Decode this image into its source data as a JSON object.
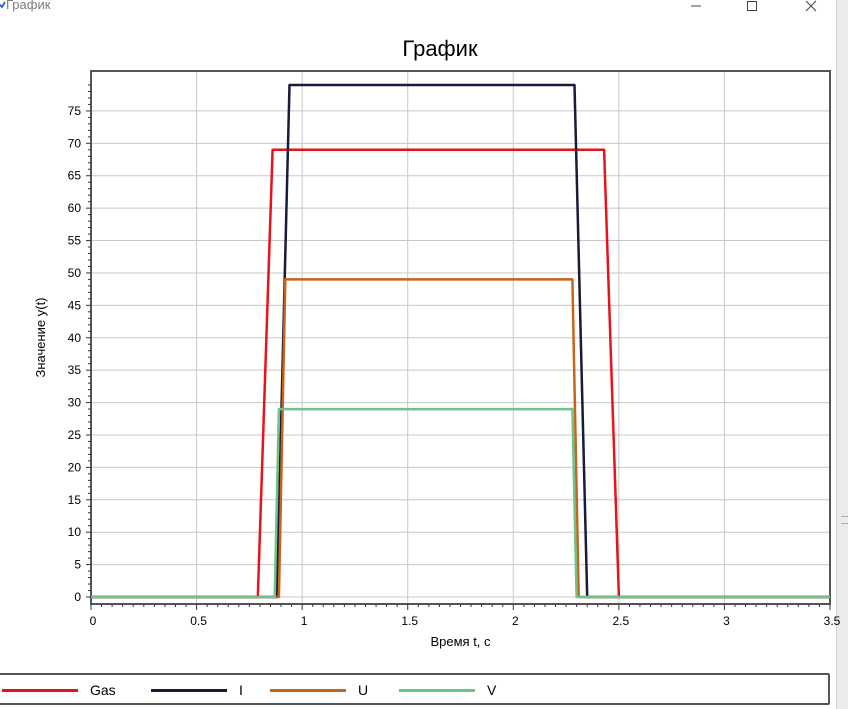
{
  "window": {
    "title": "График",
    "icon": "app-chart-icon",
    "controls": {
      "minimize": "minimize-icon",
      "maximize": "maximize-icon",
      "close": "close-icon"
    }
  },
  "chart_data": {
    "type": "line",
    "title": "График",
    "xlabel": "Время t, с",
    "ylabel": "Значение y(t)",
    "xlim": [
      0,
      3.5
    ],
    "ylim": [
      0,
      78
    ],
    "grid": true,
    "x_ticks": [
      0,
      0.5,
      1,
      1.5,
      2,
      2.5,
      3,
      3.5
    ],
    "x_tick_labels": [
      "0",
      "0.5",
      "1",
      "1.5",
      "2",
      "2.5",
      "3",
      "3.5"
    ],
    "y_ticks": [
      0,
      5,
      10,
      15,
      20,
      25,
      30,
      35,
      40,
      45,
      50,
      55,
      60,
      65,
      70,
      75
    ],
    "y_tick_labels": [
      "0",
      "5",
      "10",
      "15",
      "20",
      "25",
      "30",
      "35",
      "40",
      "45",
      "50",
      "55",
      "60",
      "65",
      "70",
      "75"
    ],
    "legend_position": "bottom",
    "series": [
      {
        "name": "Gas",
        "color": "#e8131a",
        "x": [
          0,
          0.79,
          0.86,
          2.43,
          2.5,
          3.5
        ],
        "y": [
          0,
          0,
          69,
          69,
          0,
          0
        ]
      },
      {
        "name": "I",
        "color": "#1a1a3a",
        "x": [
          0,
          0.88,
          0.94,
          2.29,
          2.35,
          3.5
        ],
        "y": [
          0,
          0,
          79,
          79,
          0,
          0
        ]
      },
      {
        "name": "U",
        "color": "#c8641a",
        "x": [
          0,
          0.89,
          0.92,
          2.28,
          2.31,
          3.5
        ],
        "y": [
          0,
          0,
          49,
          49,
          0,
          0
        ]
      },
      {
        "name": "V",
        "color": "#6cc48c",
        "x": [
          0,
          0.87,
          0.89,
          2.28,
          2.3,
          3.5
        ],
        "y": [
          0,
          0,
          29,
          29,
          0,
          0
        ]
      }
    ]
  }
}
